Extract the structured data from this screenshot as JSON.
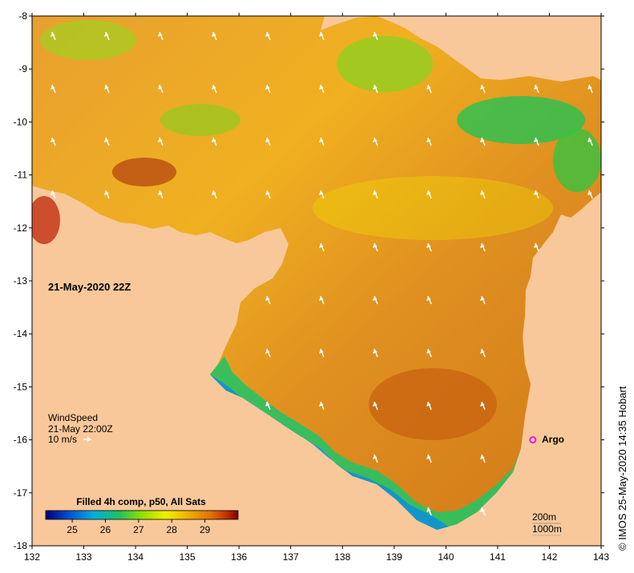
{
  "map": {
    "date_label": "21-May-2020 22Z",
    "credit": "© IMOS 25-May-2020 14:35 Hobart",
    "lon_ticks": [
      "132",
      "133",
      "134",
      "135",
      "136",
      "137",
      "138",
      "139",
      "140",
      "141",
      "142",
      "143"
    ],
    "lat_ticks": [
      "-8",
      "-9",
      "-10",
      "-11",
      "-12",
      "-13",
      "-14",
      "-15",
      "-16",
      "-17",
      "-18"
    ],
    "lon_range": [
      132,
      143
    ],
    "lat_range": [
      -18,
      -8
    ],
    "wind": {
      "title": "WindSpeed",
      "time": "21-May 22:00Z",
      "scale_label": "10 m/s"
    },
    "argo": {
      "label": "Argo",
      "lon": 141.68,
      "lat": -16.0,
      "color": "#e020e0"
    },
    "contours": [
      "200m",
      "1000m"
    ],
    "colorbar": {
      "title": "Filled 4h comp, p50, All Sats",
      "ticks": [
        "25",
        "26",
        "27",
        "28",
        "29"
      ],
      "min": 24.2,
      "max": 30.0,
      "colors": [
        "#00007a",
        "#0050d0",
        "#00b0e0",
        "#20c060",
        "#90e000",
        "#f0f000",
        "#f0b000",
        "#e07000",
        "#c03000",
        "#800000"
      ]
    },
    "land_color": "#f9c89a"
  }
}
